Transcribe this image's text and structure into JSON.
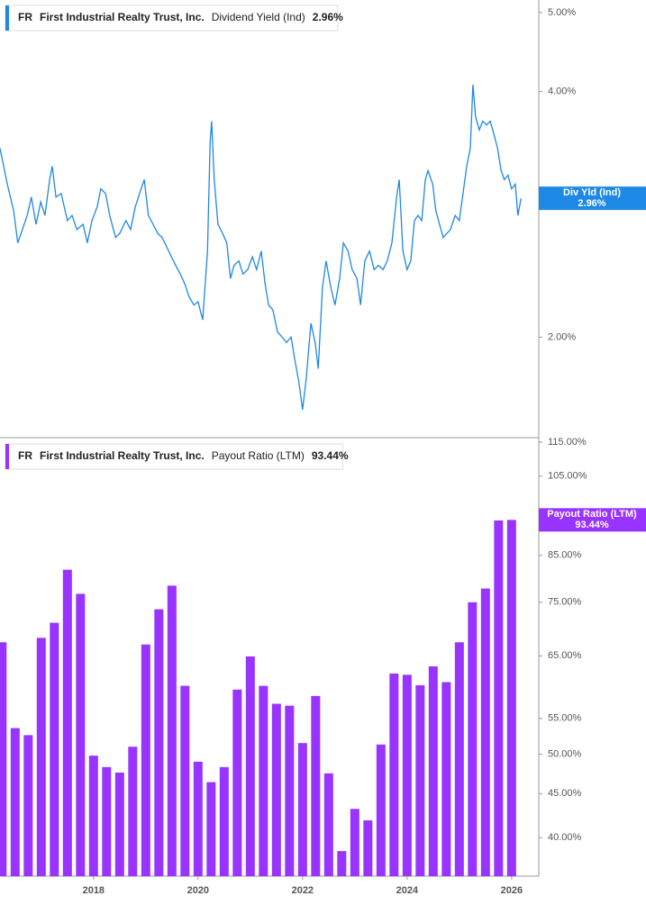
{
  "chart_data": [
    {
      "type": "line",
      "ticker": "FR",
      "company": "First Industrial Realty Trust, Inc.",
      "log_scale": true,
      "xlim": [
        2016.21,
        2026.52
      ],
      "ylim": [
        1.51,
        5.18
      ],
      "yticks": [
        {
          "value": 2,
          "label": "2.00%"
        },
        {
          "value": 4,
          "label": "4.00%"
        },
        {
          "value": 5,
          "label": "5.00%"
        }
      ],
      "series": [
        {
          "name": "Dividend Yield (Ind)",
          "badge_label": "Div Yld (Ind)",
          "color": "#1e88e5",
          "last_value_label": "2.96%",
          "x": [
            2016.21,
            2016.35,
            2016.47,
            2016.55,
            2016.64,
            2016.73,
            2016.81,
            2016.9,
            2016.99,
            2017.07,
            2017.16,
            2017.21,
            2017.28,
            2017.38,
            2017.5,
            2017.59,
            2017.68,
            2017.8,
            2017.88,
            2017.97,
            2018.07,
            2018.14,
            2018.23,
            2018.31,
            2018.42,
            2018.5,
            2018.62,
            2018.71,
            2018.8,
            2018.88,
            2018.97,
            2019.05,
            2019.14,
            2019.23,
            2019.31,
            2019.4,
            2019.49,
            2019.57,
            2019.66,
            2019.74,
            2019.83,
            2019.92,
            2020.0,
            2020.09,
            2020.18,
            2020.23,
            2020.26,
            2020.31,
            2020.38,
            2020.47,
            2020.55,
            2020.62,
            2020.69,
            2020.78,
            2020.86,
            2020.95,
            2021.04,
            2021.12,
            2021.21,
            2021.28,
            2021.35,
            2021.43,
            2021.52,
            2021.61,
            2021.69,
            2021.78,
            2021.85,
            2021.93,
            2022.0,
            2022.07,
            2022.16,
            2022.24,
            2022.3,
            2022.38,
            2022.45,
            2022.54,
            2022.62,
            2022.71,
            2022.78,
            2022.87,
            2022.95,
            2023.04,
            2023.11,
            2023.19,
            2023.28,
            2023.37,
            2023.45,
            2023.54,
            2023.62,
            2023.71,
            2023.8,
            2023.85,
            2023.92,
            2024.0,
            2024.07,
            2024.14,
            2024.21,
            2024.28,
            2024.35,
            2024.4,
            2024.49,
            2024.55,
            2024.62,
            2024.69,
            2024.76,
            2024.83,
            2024.92,
            2025.0,
            2025.07,
            2025.14,
            2025.21,
            2025.26,
            2025.31,
            2025.38,
            2025.45,
            2025.52,
            2025.59,
            2025.66,
            2025.73,
            2025.8,
            2025.86,
            2025.93,
            2026.0,
            2026.07,
            2026.12,
            2026.18
          ],
          "values": [
            3.41,
            3.08,
            2.86,
            2.61,
            2.71,
            2.82,
            2.97,
            2.75,
            2.93,
            2.82,
            3.12,
            3.24,
            2.97,
            3.0,
            2.78,
            2.82,
            2.71,
            2.75,
            2.61,
            2.78,
            2.89,
            3.04,
            3.0,
            2.82,
            2.65,
            2.68,
            2.78,
            2.71,
            2.89,
            3.0,
            3.12,
            2.82,
            2.75,
            2.68,
            2.65,
            2.58,
            2.51,
            2.45,
            2.39,
            2.33,
            2.24,
            2.19,
            2.21,
            2.1,
            2.55,
            3.46,
            3.68,
            3.12,
            2.75,
            2.68,
            2.61,
            2.36,
            2.45,
            2.48,
            2.39,
            2.42,
            2.51,
            2.42,
            2.55,
            2.33,
            2.19,
            2.16,
            2.03,
            2.0,
            1.97,
            2.0,
            1.88,
            1.76,
            1.63,
            1.78,
            2.08,
            1.97,
            1.83,
            2.3,
            2.48,
            2.3,
            2.19,
            2.36,
            2.61,
            2.55,
            2.42,
            2.36,
            2.19,
            2.48,
            2.55,
            2.42,
            2.45,
            2.42,
            2.48,
            2.61,
            2.97,
            3.12,
            2.55,
            2.42,
            2.48,
            2.78,
            2.82,
            2.78,
            3.12,
            3.2,
            3.08,
            2.86,
            2.75,
            2.65,
            2.68,
            2.71,
            2.82,
            2.78,
            3.0,
            3.24,
            3.41,
            4.08,
            3.73,
            3.59,
            3.68,
            3.64,
            3.68,
            3.55,
            3.41,
            3.2,
            3.12,
            3.16,
            3.04,
            3.08,
            2.82,
            2.96
          ]
        }
      ]
    },
    {
      "type": "bar",
      "ticker": "FR",
      "company": "First Industrial Realty Trust, Inc.",
      "log_scale": true,
      "xlim": [
        2016.21,
        2026.52
      ],
      "ylim": [
        36.1,
        116.1
      ],
      "xticks": [
        2018,
        2020,
        2022,
        2024,
        2026
      ],
      "yticks": [
        {
          "value": 40,
          "label": "40.00%"
        },
        {
          "value": 45,
          "label": "45.00%"
        },
        {
          "value": 50,
          "label": "50.00%"
        },
        {
          "value": 55,
          "label": "55.00%"
        },
        {
          "value": 65,
          "label": "65.00%"
        },
        {
          "value": 75,
          "label": "75.00%"
        },
        {
          "value": 85,
          "label": "85.00%"
        },
        {
          "value": 105,
          "label": "105.00%"
        },
        {
          "value": 115,
          "label": "115.00%"
        }
      ],
      "series": [
        {
          "name": "Payout Ratio (LTM)",
          "color": "#9933ff",
          "last_value_label": "93.44%",
          "x": [
            2016.25,
            2016.5,
            2016.75,
            2017.0,
            2017.25,
            2017.5,
            2017.75,
            2018.0,
            2018.25,
            2018.5,
            2018.75,
            2019.0,
            2019.25,
            2019.5,
            2019.75,
            2020.0,
            2020.25,
            2020.5,
            2020.75,
            2021.0,
            2021.25,
            2021.5,
            2021.75,
            2022.0,
            2022.25,
            2022.5,
            2022.75,
            2023.0,
            2023.25,
            2023.5,
            2023.75,
            2024.0,
            2024.25,
            2024.5,
            2024.75,
            2025.0,
            2025.25,
            2025.5,
            2025.75,
            2026.0
          ],
          "values": [
            67.4,
            53.6,
            52.6,
            68.2,
            71.0,
            81.8,
            76.7,
            49.8,
            48.3,
            47.6,
            51.0,
            67.0,
            73.6,
            78.4,
            60.0,
            49.0,
            46.4,
            48.3,
            59.4,
            64.9,
            60.0,
            57.2,
            56.9,
            51.5,
            58.4,
            47.5,
            38.6,
            43.2,
            41.9,
            51.3,
            62.0,
            61.8,
            60.1,
            63.2,
            60.6,
            67.4,
            75.0,
            77.8,
            93.3,
            93.44
          ]
        }
      ]
    }
  ]
}
